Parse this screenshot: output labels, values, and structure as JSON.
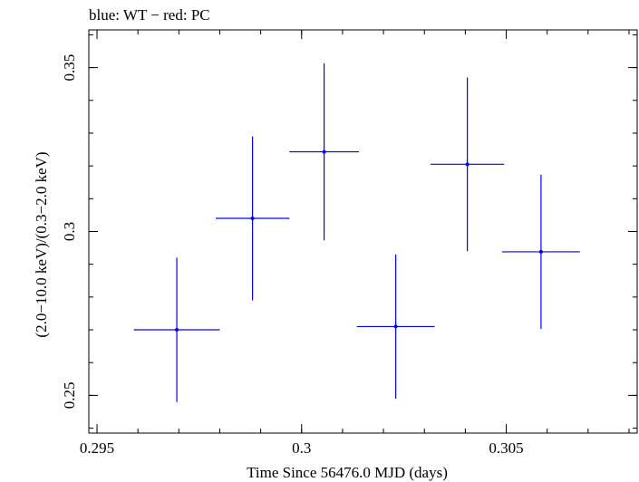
{
  "chart_data": {
    "type": "scatter",
    "title": "blue: WT − red: PC",
    "xlabel": "Time Since 56476.0 MJD (days)",
    "ylabel": "(2.0−10.0 keV)/(0.3−2.0 keV)",
    "xlim": [
      0.2948,
      0.3082
    ],
    "ylim": [
      0.2385,
      0.3615
    ],
    "xticks": [
      {
        "value": 0.295,
        "label": "0.295"
      },
      {
        "value": 0.3,
        "label": "0.3"
      },
      {
        "value": 0.305,
        "label": "0.305"
      }
    ],
    "yticks": [
      {
        "value": 0.25,
        "label": "0.25"
      },
      {
        "value": 0.3,
        "label": "0.3"
      },
      {
        "value": 0.35,
        "label": "0.35"
      }
    ],
    "x_minor_step": 0.001,
    "y_minor_step": 0.01,
    "grid": false,
    "series": [
      {
        "name": "WT",
        "color": "#0000ff",
        "points": [
          {
            "x": 0.29695,
            "y": 0.27,
            "xerr": 0.00105,
            "yerr_lo": 0.022,
            "yerr_hi": 0.022
          },
          {
            "x": 0.2988,
            "y": 0.304,
            "xerr": 0.0009,
            "yerr_lo": 0.025,
            "yerr_hi": 0.025
          },
          {
            "x": 0.30055,
            "y": 0.3243,
            "xerr": 0.00085,
            "yerr_lo": 0.027,
            "yerr_hi": 0.027
          },
          {
            "x": 0.3023,
            "y": 0.271,
            "xerr": 0.00095,
            "yerr_lo": 0.022,
            "yerr_hi": 0.022
          },
          {
            "x": 0.30405,
            "y": 0.3205,
            "xerr": 0.0009,
            "yerr_lo": 0.0265,
            "yerr_hi": 0.0265
          },
          {
            "x": 0.30585,
            "y": 0.2938,
            "xerr": 0.00095,
            "yerr_lo": 0.0235,
            "yerr_hi": 0.0235
          }
        ]
      }
    ]
  }
}
